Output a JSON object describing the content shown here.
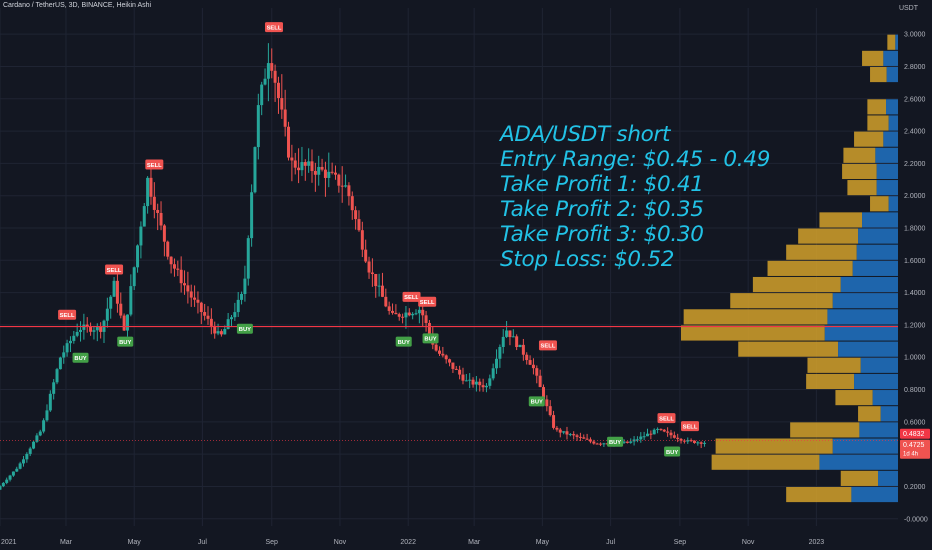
{
  "header": {
    "title": "Cardano / TetherUS, 3D, BINANCE, Heikin Ashi",
    "currency": "USDT"
  },
  "annotation": {
    "lines": [
      "ADA/USDT short",
      "Entry Range: $0.45 - 0.49",
      "Take Profit 1: $0.41",
      "Take Profit 2: $0.35",
      "Take Profit 3: $0.30",
      "Stop Loss: $0.52"
    ]
  },
  "price_labels": {
    "upper": "0.4832",
    "current": "0.4725",
    "countdown": "1d 4h"
  },
  "colors": {
    "background": "#131722",
    "up": "#26a69a",
    "down": "#ef5350",
    "resistance_line": "#f23645",
    "annotation": "#22c2e6",
    "volume_profile_gold": "#d4a12a",
    "volume_profile_blue": "#2173c4",
    "sell_label": "#ef5350",
    "buy_label": "#43a047"
  },
  "chart_data": {
    "type": "candlestick",
    "style": "Heikin Ashi",
    "symbol": "ADAUSDT",
    "exchange": "BINANCE",
    "interval": "3D",
    "y_axis": {
      "ticks": [
        -0.0,
        0.2,
        0.4,
        0.6,
        0.8,
        1.0,
        1.2,
        1.4,
        1.6,
        1.8,
        2.0,
        2.2,
        2.4,
        2.6,
        2.8,
        3.0
      ],
      "tick_labels": [
        "-0.0000",
        "0.2000",
        "0.4000",
        "0.6000",
        "0.8000",
        "1.0000",
        "1.2000",
        "1.4000",
        "1.6000",
        "1.8000",
        "2.0000",
        "2.2000",
        "2.4000",
        "2.6000",
        "2.8000",
        "3.0000"
      ],
      "range": [
        -0.02,
        3.1
      ],
      "position": "right"
    },
    "x_axis": {
      "ticks": [
        {
          "label": "2021",
          "date": "2021-01-01"
        },
        {
          "label": "Mar",
          "date": "2021-03-01"
        },
        {
          "label": "May",
          "date": "2021-05-01"
        },
        {
          "label": "Jul",
          "date": "2021-07-01"
        },
        {
          "label": "Sep",
          "date": "2021-09-01"
        },
        {
          "label": "Nov",
          "date": "2021-11-01"
        },
        {
          "label": "2022",
          "date": "2022-01-01"
        },
        {
          "label": "Mar",
          "date": "2022-03-01"
        },
        {
          "label": "May",
          "date": "2022-05-01"
        },
        {
          "label": "Jul",
          "date": "2022-07-01"
        },
        {
          "label": "Sep",
          "date": "2022-09-01"
        },
        {
          "label": "Nov",
          "date": "2022-11-01"
        },
        {
          "label": "2023",
          "date": "2023-01-01"
        }
      ],
      "range": [
        "2021-01-01",
        "2023-03-15"
      ]
    },
    "price_path": [
      {
        "date": "2021-01-01",
        "price": 0.18
      },
      {
        "date": "2021-01-20",
        "price": 0.32
      },
      {
        "date": "2021-02-10",
        "price": 0.55
      },
      {
        "date": "2021-02-27",
        "price": 1.0
      },
      {
        "date": "2021-03-15",
        "price": 1.18
      },
      {
        "date": "2021-04-05",
        "price": 1.18
      },
      {
        "date": "2021-04-16",
        "price": 1.45
      },
      {
        "date": "2021-04-25",
        "price": 1.15
      },
      {
        "date": "2021-05-16",
        "price": 2.1
      },
      {
        "date": "2021-06-05",
        "price": 1.6
      },
      {
        "date": "2021-06-26",
        "price": 1.35
      },
      {
        "date": "2021-07-20",
        "price": 1.12
      },
      {
        "date": "2021-08-10",
        "price": 1.4
      },
      {
        "date": "2021-08-22",
        "price": 2.5
      },
      {
        "date": "2021-09-02",
        "price": 2.9
      },
      {
        "date": "2021-09-21",
        "price": 2.2
      },
      {
        "date": "2021-10-20",
        "price": 2.15
      },
      {
        "date": "2021-11-10",
        "price": 2.05
      },
      {
        "date": "2021-11-30",
        "price": 1.55
      },
      {
        "date": "2021-12-20",
        "price": 1.25
      },
      {
        "date": "2022-01-15",
        "price": 1.3
      },
      {
        "date": "2022-01-28",
        "price": 1.05
      },
      {
        "date": "2022-02-25",
        "price": 0.85
      },
      {
        "date": "2022-03-15",
        "price": 0.82
      },
      {
        "date": "2022-04-01",
        "price": 1.18
      },
      {
        "date": "2022-04-25",
        "price": 0.95
      },
      {
        "date": "2022-05-15",
        "price": 0.55
      },
      {
        "date": "2022-06-20",
        "price": 0.47
      },
      {
        "date": "2022-07-20",
        "price": 0.47
      },
      {
        "date": "2022-08-15",
        "price": 0.55
      },
      {
        "date": "2022-09-10",
        "price": 0.48
      },
      {
        "date": "2022-09-25",
        "price": 0.4725
      }
    ],
    "signals": [
      {
        "label": "SELL",
        "date": "2021-03-02",
        "price": 1.22
      },
      {
        "label": "BUY",
        "date": "2021-03-14",
        "price": 1.04
      },
      {
        "label": "SELL",
        "date": "2021-04-13",
        "price": 1.5
      },
      {
        "label": "BUY",
        "date": "2021-04-23",
        "price": 1.14
      },
      {
        "label": "SELL",
        "date": "2021-05-19",
        "price": 2.15
      },
      {
        "label": "BUY",
        "date": "2021-08-08",
        "price": 1.22
      },
      {
        "label": "SELL",
        "date": "2021-09-03",
        "price": 3.0
      },
      {
        "label": "BUY",
        "date": "2021-12-28",
        "price": 1.14
      },
      {
        "label": "SELL",
        "date": "2022-01-04",
        "price": 1.33
      },
      {
        "label": "SELL",
        "date": "2022-01-18",
        "price": 1.3
      },
      {
        "label": "BUY",
        "date": "2022-01-21",
        "price": 1.16
      },
      {
        "label": "BUY",
        "date": "2022-04-26",
        "price": 0.77
      },
      {
        "label": "SELL",
        "date": "2022-05-06",
        "price": 1.03
      },
      {
        "label": "SELL",
        "date": "2022-08-20",
        "price": 0.58
      },
      {
        "label": "BUY",
        "date": "2022-07-05",
        "price": 0.52
      },
      {
        "label": "SELL",
        "date": "2022-09-10",
        "price": 0.53
      },
      {
        "label": "BUY",
        "date": "2022-08-25",
        "price": 0.46
      }
    ],
    "horizontal_lines": [
      {
        "price": 1.19
      },
      {
        "price": 0.4832
      }
    ],
    "volume_profile": [
      {
        "price": 2.95,
        "up": 0.12,
        "down": 0.04
      },
      {
        "price": 2.85,
        "up": 0.32,
        "down": 0.22
      },
      {
        "price": 2.75,
        "up": 0.25,
        "down": 0.17
      },
      {
        "price": 2.55,
        "up": 0.28,
        "down": 0.18
      },
      {
        "price": 2.45,
        "up": 0.32,
        "down": 0.14
      },
      {
        "price": 2.35,
        "up": 0.44,
        "down": 0.22
      },
      {
        "price": 2.25,
        "up": 0.48,
        "down": 0.34
      },
      {
        "price": 2.15,
        "up": 0.52,
        "down": 0.32
      },
      {
        "price": 2.05,
        "up": 0.44,
        "down": 0.32
      },
      {
        "price": 1.95,
        "up": 0.28,
        "down": 0.14
      },
      {
        "price": 1.85,
        "up": 0.64,
        "down": 0.54
      },
      {
        "price": 1.75,
        "up": 0.9,
        "down": 0.6
      },
      {
        "price": 1.65,
        "up": 1.06,
        "down": 0.62
      },
      {
        "price": 1.55,
        "up": 1.28,
        "down": 0.68
      },
      {
        "price": 1.45,
        "up": 1.32,
        "down": 0.86
      },
      {
        "price": 1.35,
        "up": 1.54,
        "down": 0.98
      },
      {
        "price": 1.25,
        "up": 2.16,
        "down": 1.06
      },
      {
        "price": 1.15,
        "up": 2.16,
        "down": 1.1
      },
      {
        "price": 1.05,
        "up": 1.5,
        "down": 0.9
      },
      {
        "price": 0.95,
        "up": 0.8,
        "down": 0.56
      },
      {
        "price": 0.85,
        "up": 0.72,
        "down": 0.66
      },
      {
        "price": 0.75,
        "up": 0.56,
        "down": 0.38
      },
      {
        "price": 0.65,
        "up": 0.34,
        "down": 0.26
      },
      {
        "price": 0.55,
        "up": 1.04,
        "down": 0.58
      },
      {
        "price": 0.45,
        "up": 1.76,
        "down": 0.98
      },
      {
        "price": 0.35,
        "up": 1.62,
        "down": 1.18
      },
      {
        "price": 0.25,
        "up": 0.56,
        "down": 0.3
      },
      {
        "price": 0.15,
        "up": 0.98,
        "down": 0.7
      }
    ],
    "xlabel": "",
    "ylabel": ""
  }
}
